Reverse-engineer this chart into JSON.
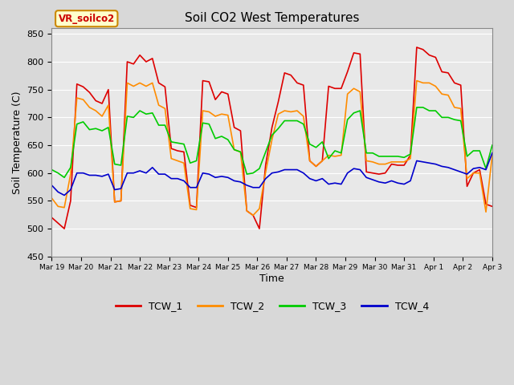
{
  "title": "Soil CO2 West Temperatures",
  "xlabel": "Time",
  "ylabel": "Soil Temperature (C)",
  "ylim": [
    450,
    860
  ],
  "yticks": [
    450,
    500,
    550,
    600,
    650,
    700,
    750,
    800,
    850
  ],
  "fig_bg_color": "#d8d8d8",
  "plot_bg_color": "#e8e8e8",
  "legend_label": "VR_soilco2",
  "series_labels": [
    "TCW_1",
    "TCW_2",
    "TCW_3",
    "TCW_4"
  ],
  "series_colors": [
    "#dd0000",
    "#ff8c00",
    "#00cc00",
    "#0000cc"
  ],
  "line_width": 1.2,
  "x_tick_labels": [
    "Mar 19",
    "Mar 20",
    "Mar 21",
    "Mar 22",
    "Mar 23",
    "Mar 24",
    "Mar 25",
    "Mar 26",
    "Mar 27",
    "Mar 28",
    "Mar 29",
    "Mar 30",
    "Mar 31",
    "Apr 1",
    "Apr 2",
    "Apr 3"
  ],
  "TCW_1": [
    520,
    510,
    500,
    550,
    760,
    755,
    745,
    730,
    725,
    750,
    548,
    550,
    800,
    796,
    812,
    800,
    806,
    762,
    755,
    644,
    640,
    638,
    542,
    538,
    766,
    764,
    732,
    746,
    742,
    682,
    676,
    532,
    524,
    500,
    615,
    682,
    728,
    780,
    776,
    762,
    758,
    622,
    612,
    622,
    756,
    752,
    752,
    782,
    816,
    814,
    602,
    600,
    598,
    600,
    616,
    614,
    614,
    632,
    826,
    822,
    812,
    808,
    782,
    780,
    762,
    758,
    576,
    600,
    606,
    544,
    540
  ],
  "TCW_2": [
    555,
    540,
    538,
    598,
    735,
    732,
    718,
    712,
    702,
    722,
    548,
    550,
    762,
    756,
    762,
    756,
    762,
    722,
    716,
    626,
    622,
    618,
    536,
    534,
    712,
    710,
    702,
    706,
    704,
    642,
    638,
    532,
    524,
    536,
    602,
    660,
    706,
    712,
    710,
    712,
    702,
    622,
    612,
    622,
    632,
    630,
    632,
    742,
    752,
    746,
    622,
    620,
    616,
    616,
    620,
    620,
    620,
    626,
    766,
    762,
    762,
    756,
    742,
    740,
    718,
    716,
    590,
    600,
    600,
    530,
    632
  ],
  "TCW_3": [
    606,
    600,
    592,
    610,
    688,
    692,
    678,
    680,
    676,
    682,
    616,
    614,
    702,
    700,
    712,
    706,
    708,
    686,
    686,
    656,
    654,
    652,
    618,
    622,
    690,
    688,
    662,
    666,
    660,
    642,
    638,
    598,
    600,
    608,
    638,
    668,
    680,
    694,
    694,
    694,
    688,
    652,
    646,
    656,
    626,
    640,
    636,
    696,
    708,
    712,
    636,
    636,
    630,
    630,
    630,
    630,
    628,
    634,
    718,
    718,
    712,
    712,
    700,
    700,
    696,
    694,
    630,
    640,
    640,
    608,
    650
  ],
  "TCW_4": [
    578,
    566,
    560,
    570,
    600,
    600,
    596,
    596,
    594,
    598,
    570,
    572,
    600,
    600,
    604,
    600,
    610,
    598,
    598,
    590,
    590,
    586,
    574,
    574,
    600,
    598,
    592,
    594,
    592,
    586,
    584,
    578,
    574,
    574,
    590,
    600,
    602,
    606,
    606,
    606,
    600,
    590,
    586,
    590,
    580,
    582,
    580,
    600,
    608,
    606,
    592,
    588,
    584,
    582,
    586,
    582,
    580,
    586,
    622,
    620,
    618,
    616,
    612,
    610,
    606,
    602,
    598,
    608,
    610,
    606,
    636
  ]
}
